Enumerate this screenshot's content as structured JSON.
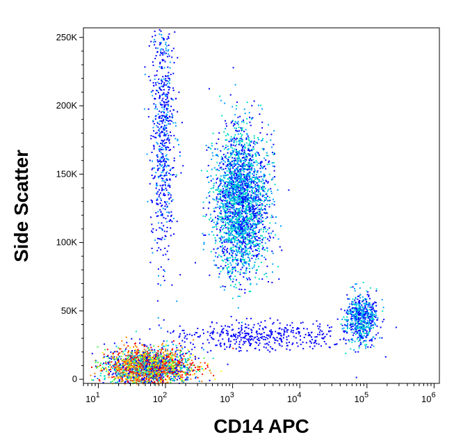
{
  "chart_data": {
    "type": "scatter",
    "subtype": "flow-cytometry density dot plot",
    "xlabel": "CD14 APC",
    "ylabel": "Side Scatter",
    "x_scale": "log",
    "xlim": [
      6,
      1200000
    ],
    "ylim": [
      -3000,
      257000
    ],
    "x_ticks": [
      {
        "value": 10,
        "base": "10",
        "exp": "1"
      },
      {
        "value": 100,
        "base": "10",
        "exp": "2"
      },
      {
        "value": 1000,
        "base": "10",
        "exp": "3"
      },
      {
        "value": 10000,
        "base": "10",
        "exp": "4"
      },
      {
        "value": 100000,
        "base": "10",
        "exp": "5"
      },
      {
        "value": 1000000,
        "base": "10",
        "exp": "6"
      }
    ],
    "y_ticks": [
      {
        "value": 0,
        "label": "0"
      },
      {
        "value": 50000,
        "label": "50K"
      },
      {
        "value": 100000,
        "label": "100K"
      },
      {
        "value": 150000,
        "label": "150K"
      },
      {
        "value": 200000,
        "label": "200K"
      },
      {
        "value": 250000,
        "label": "250K"
      }
    ],
    "grid": false,
    "colormap": [
      "#0000ff",
      "#00a0ff",
      "#00e0c0",
      "#40ff40",
      "#ffff00",
      "#ff8000",
      "#ff0000"
    ],
    "populations": [
      {
        "id": "lymphocytes",
        "x_center": 55,
        "y_center": 9000,
        "x_spread_decades": 0.33,
        "y_spread": 7000,
        "peak_density": 1.0
      },
      {
        "id": "granulocytes",
        "x_center": 1300,
        "y_center": 130000,
        "x_spread_decades": 0.2,
        "y_spread": 26000,
        "peak_density": 0.42
      },
      {
        "id": "monocytes",
        "x_center": 80000,
        "y_center": 45000,
        "x_spread_decades": 0.12,
        "y_spread": 9000,
        "peak_density": 0.35
      },
      {
        "id": "vertical-streak",
        "x_center": 90,
        "y_center": 185000,
        "x_spread_decades": 0.09,
        "y_spread": 50000,
        "peak_density": 0.2
      },
      {
        "id": "horizontal-streak",
        "x_center": 3000,
        "y_center": 32000,
        "x_spread_decades": 0.7,
        "y_spread": 5000,
        "peak_density": 0.1
      }
    ]
  }
}
